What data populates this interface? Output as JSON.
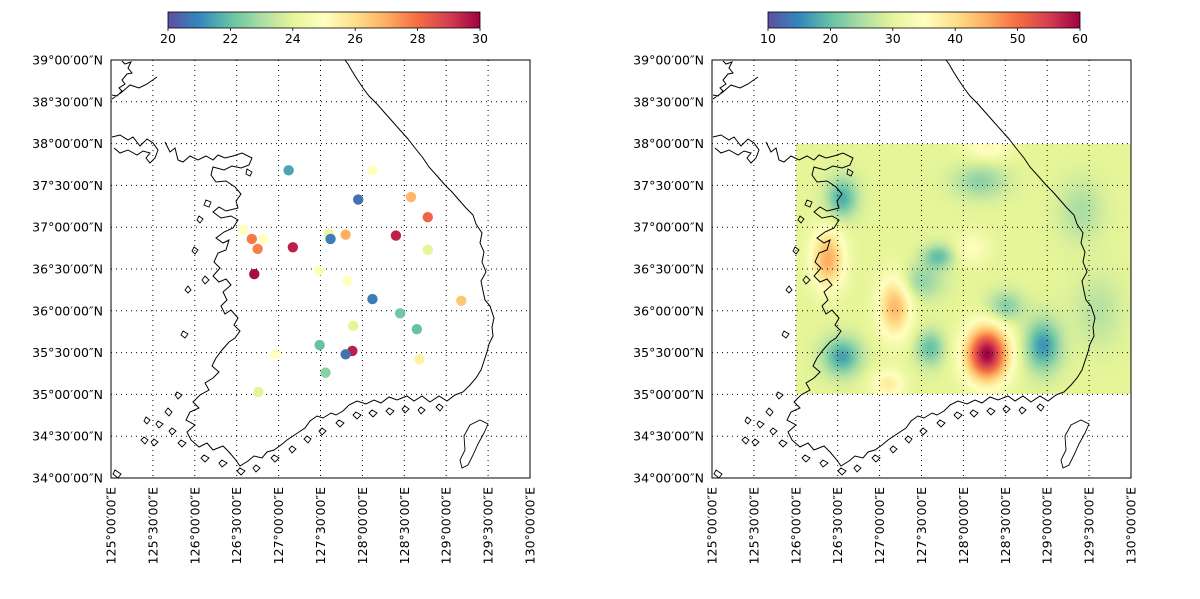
{
  "chart_data": [
    {
      "type": "scatter",
      "panel": "left",
      "projection": "lat-lon map, coastline of Korean peninsula",
      "colorbar": {
        "min": 20,
        "max": 30,
        "ticks": [
          "20",
          "22",
          "24",
          "26",
          "28",
          "30"
        ],
        "colormap": "Spectral_r",
        "placement": "top"
      },
      "x_axis": {
        "range": [
          125.0,
          130.0
        ],
        "ticks": [
          125.0,
          125.5,
          126.0,
          126.5,
          127.0,
          127.5,
          128.0,
          128.5,
          129.0,
          129.5,
          130.0
        ],
        "tick_labels": [
          "125°00′00″E",
          "125°30′00″E",
          "126°00′00″E",
          "126°30′00″E",
          "127°00′00″E",
          "127°30′00″E",
          "128°00′00″E",
          "128°30′00″E",
          "129°00′00″E",
          "129°30′00″E",
          "130°00′00″E"
        ]
      },
      "y_axis": {
        "range": [
          34.0,
          39.0
        ],
        "ticks": [
          34.0,
          34.5,
          35.0,
          35.5,
          36.0,
          36.5,
          37.0,
          37.5,
          38.0,
          38.5,
          39.0
        ],
        "tick_labels": [
          "34°00′00″N",
          "34°30′00″N",
          "35°00′00″N",
          "35°30′00″N",
          "36°00′00″N",
          "36°30′00″N",
          "37°00′00″N",
          "37°30′00″N",
          "38°00′00″N",
          "38°30′00″N",
          "39°00′00″N"
        ]
      },
      "grid": "dotted",
      "points": [
        {
          "lon": 127.12,
          "lat": 37.68,
          "value": 21.5
        },
        {
          "lon": 128.12,
          "lat": 37.68,
          "value": 25.0
        },
        {
          "lon": 127.95,
          "lat": 37.33,
          "value": 20.6
        },
        {
          "lon": 128.58,
          "lat": 37.36,
          "value": 26.8
        },
        {
          "lon": 128.78,
          "lat": 37.12,
          "value": 28.2
        },
        {
          "lon": 126.58,
          "lat": 36.97,
          "value": 25.0
        },
        {
          "lon": 127.6,
          "lat": 36.92,
          "value": 24.3
        },
        {
          "lon": 127.8,
          "lat": 36.91,
          "value": 27.0
        },
        {
          "lon": 127.62,
          "lat": 36.86,
          "value": 20.8
        },
        {
          "lon": 128.4,
          "lat": 36.9,
          "value": 29.5
        },
        {
          "lon": 126.68,
          "lat": 36.86,
          "value": 27.8
        },
        {
          "lon": 126.82,
          "lat": 36.86,
          "value": 25.0
        },
        {
          "lon": 126.75,
          "lat": 36.74,
          "value": 27.7
        },
        {
          "lon": 127.17,
          "lat": 36.76,
          "value": 29.5
        },
        {
          "lon": 128.78,
          "lat": 36.73,
          "value": 24.0
        },
        {
          "lon": 127.48,
          "lat": 36.48,
          "value": 25.0
        },
        {
          "lon": 126.71,
          "lat": 36.44,
          "value": 29.8
        },
        {
          "lon": 127.82,
          "lat": 36.36,
          "value": 25.0
        },
        {
          "lon": 128.12,
          "lat": 36.14,
          "value": 20.8
        },
        {
          "lon": 129.18,
          "lat": 36.12,
          "value": 26.5
        },
        {
          "lon": 128.45,
          "lat": 35.97,
          "value": 22.2
        },
        {
          "lon": 127.89,
          "lat": 35.82,
          "value": 24.0
        },
        {
          "lon": 128.65,
          "lat": 35.78,
          "value": 22.0
        },
        {
          "lon": 127.49,
          "lat": 35.59,
          "value": 22.0
        },
        {
          "lon": 127.88,
          "lat": 35.52,
          "value": 29.5
        },
        {
          "lon": 127.8,
          "lat": 35.48,
          "value": 20.6
        },
        {
          "lon": 126.96,
          "lat": 35.48,
          "value": 25.0
        },
        {
          "lon": 128.68,
          "lat": 35.42,
          "value": 25.5
        },
        {
          "lon": 127.56,
          "lat": 35.26,
          "value": 22.5
        },
        {
          "lon": 126.76,
          "lat": 35.03,
          "value": 24.0
        }
      ]
    },
    {
      "type": "heatmap",
      "panel": "right",
      "projection": "lat-lon map, coastline of Korean peninsula",
      "colorbar": {
        "min": 10,
        "max": 60,
        "ticks": [
          "10",
          "20",
          "30",
          "40",
          "50",
          "60"
        ],
        "colormap": "Spectral_r",
        "placement": "top"
      },
      "x_axis": {
        "range": [
          125.0,
          130.0
        ],
        "ticks": [
          125.0,
          125.5,
          126.0,
          126.5,
          127.0,
          127.5,
          128.0,
          128.5,
          129.0,
          129.5,
          130.0
        ],
        "tick_labels": [
          "125°00′00″E",
          "125°30′00″E",
          "126°00′00″E",
          "126°30′00″E",
          "127°00′00″E",
          "127°30′00″E",
          "128°00′00″E",
          "128°30′00″E",
          "129°00′00″E",
          "129°30′00″E",
          "130°00′00″E"
        ]
      },
      "y_axis": {
        "range": [
          34.0,
          39.0
        ],
        "ticks": [
          34.0,
          34.5,
          35.0,
          35.5,
          36.0,
          36.5,
          37.0,
          37.5,
          38.0,
          38.5,
          39.0
        ],
        "tick_labels": [
          "34°00′00″N",
          "34°30′00″N",
          "35°00′00″N",
          "35°30′00″N",
          "36°00′00″N",
          "36°30′00″N",
          "37°00′00″N",
          "37°30′00″N",
          "38°00′00″N",
          "38°30′00″N",
          "39°00′00″N"
        ]
      },
      "grid": "dotted",
      "field_extent": {
        "lon": [
          126.0,
          130.0
        ],
        "lat": [
          35.0,
          38.0
        ]
      },
      "field_base_value": 30,
      "field_features": [
        {
          "lon": 128.28,
          "lat": 35.48,
          "amp": 30,
          "sx": 0.18,
          "sy": 0.23
        },
        {
          "lon": 127.18,
          "lat": 36.05,
          "amp": 14,
          "sx": 0.14,
          "sy": 0.26
        },
        {
          "lon": 126.38,
          "lat": 36.62,
          "amp": 15,
          "sx": 0.14,
          "sy": 0.25
        },
        {
          "lon": 127.1,
          "lat": 35.12,
          "amp": 8,
          "sx": 0.14,
          "sy": 0.12
        },
        {
          "lon": 128.1,
          "lat": 36.75,
          "amp": 5,
          "sx": 0.14,
          "sy": 0.14
        },
        {
          "lon": 128.3,
          "lat": 37.95,
          "amp": 6,
          "sx": 0.2,
          "sy": 0.1
        },
        {
          "lon": 126.55,
          "lat": 37.35,
          "amp": -12,
          "sx": 0.13,
          "sy": 0.17
        },
        {
          "lon": 126.55,
          "lat": 35.45,
          "amp": -13,
          "sx": 0.16,
          "sy": 0.16
        },
        {
          "lon": 128.95,
          "lat": 35.58,
          "amp": -14,
          "sx": 0.15,
          "sy": 0.22
        },
        {
          "lon": 127.6,
          "lat": 35.55,
          "amp": -10,
          "sx": 0.12,
          "sy": 0.15
        },
        {
          "lon": 127.7,
          "lat": 36.65,
          "amp": -10,
          "sx": 0.13,
          "sy": 0.1
        },
        {
          "lon": 128.5,
          "lat": 36.05,
          "amp": -8,
          "sx": 0.15,
          "sy": 0.13
        },
        {
          "lon": 127.5,
          "lat": 36.35,
          "amp": -7,
          "sx": 0.18,
          "sy": 0.15
        },
        {
          "lon": 128.2,
          "lat": 37.55,
          "amp": -7,
          "sx": 0.22,
          "sy": 0.14
        },
        {
          "lon": 129.4,
          "lat": 37.2,
          "amp": -5,
          "sx": 0.18,
          "sy": 0.25
        },
        {
          "lon": 129.6,
          "lat": 36.0,
          "amp": -4,
          "sx": 0.2,
          "sy": 0.3
        }
      ]
    }
  ]
}
